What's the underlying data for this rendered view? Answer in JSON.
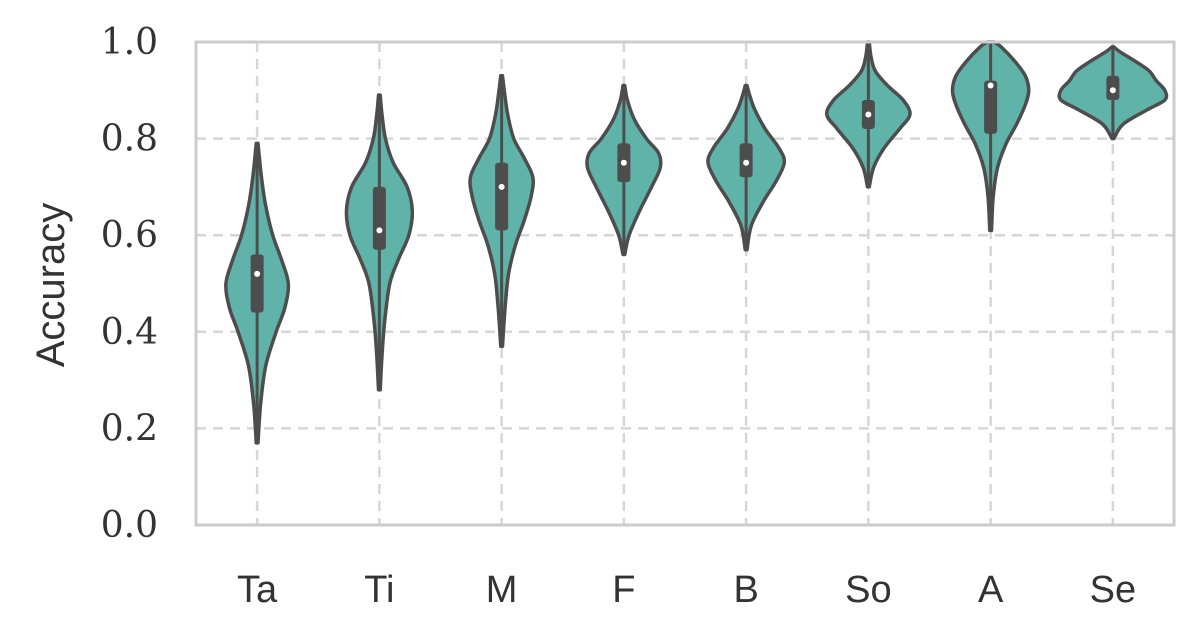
{
  "chart_data": {
    "type": "violin",
    "title": "",
    "xlabel": "",
    "ylabel": "Accuracy",
    "ylim": [
      0,
      1
    ],
    "yticks": [
      "0.0",
      "0.2",
      "0.4",
      "0.6",
      "0.8",
      "1.0"
    ],
    "grid": true,
    "colors": {
      "fill": "#5fb3a8",
      "stroke": "#4d4d4d",
      "grid": "#d6d6d6",
      "frame": "#cccccc"
    },
    "categories": [
      "Ta",
      "Ti",
      "M",
      "F",
      "B",
      "So",
      "A",
      "Se"
    ],
    "violins": [
      {
        "label": "Ta",
        "min": 0.17,
        "q1": 0.44,
        "median": 0.52,
        "q3": 0.56,
        "max": 0.79,
        "density": [
          [
            0.17,
            0.005
          ],
          [
            0.25,
            0.02
          ],
          [
            0.33,
            0.05
          ],
          [
            0.4,
            0.11
          ],
          [
            0.45,
            0.16
          ],
          [
            0.5,
            0.18
          ],
          [
            0.55,
            0.14
          ],
          [
            0.6,
            0.09
          ],
          [
            0.66,
            0.05
          ],
          [
            0.72,
            0.025
          ],
          [
            0.79,
            0.005
          ]
        ]
      },
      {
        "label": "Ti",
        "min": 0.28,
        "q1": 0.57,
        "median": 0.61,
        "q3": 0.7,
        "max": 0.89,
        "density": [
          [
            0.28,
            0.005
          ],
          [
            0.35,
            0.015
          ],
          [
            0.42,
            0.03
          ],
          [
            0.5,
            0.06
          ],
          [
            0.55,
            0.11
          ],
          [
            0.6,
            0.17
          ],
          [
            0.65,
            0.19
          ],
          [
            0.7,
            0.16
          ],
          [
            0.75,
            0.08
          ],
          [
            0.8,
            0.035
          ],
          [
            0.85,
            0.015
          ],
          [
            0.89,
            0.005
          ]
        ]
      },
      {
        "label": "M",
        "min": 0.37,
        "q1": 0.61,
        "median": 0.7,
        "q3": 0.75,
        "max": 0.93,
        "density": [
          [
            0.37,
            0.005
          ],
          [
            0.45,
            0.02
          ],
          [
            0.52,
            0.04
          ],
          [
            0.58,
            0.08
          ],
          [
            0.63,
            0.13
          ],
          [
            0.68,
            0.17
          ],
          [
            0.72,
            0.18
          ],
          [
            0.76,
            0.13
          ],
          [
            0.8,
            0.07
          ],
          [
            0.85,
            0.035
          ],
          [
            0.9,
            0.015
          ],
          [
            0.93,
            0.005
          ]
        ]
      },
      {
        "label": "F",
        "min": 0.56,
        "q1": 0.71,
        "median": 0.75,
        "q3": 0.79,
        "max": 0.91,
        "density": [
          [
            0.56,
            0.005
          ],
          [
            0.6,
            0.03
          ],
          [
            0.65,
            0.09
          ],
          [
            0.7,
            0.16
          ],
          [
            0.74,
            0.21
          ],
          [
            0.77,
            0.2
          ],
          [
            0.8,
            0.13
          ],
          [
            0.84,
            0.06
          ],
          [
            0.88,
            0.02
          ],
          [
            0.91,
            0.005
          ]
        ]
      },
      {
        "label": "B",
        "min": 0.57,
        "q1": 0.72,
        "median": 0.75,
        "q3": 0.79,
        "max": 0.91,
        "density": [
          [
            0.57,
            0.005
          ],
          [
            0.62,
            0.03
          ],
          [
            0.67,
            0.1
          ],
          [
            0.71,
            0.17
          ],
          [
            0.75,
            0.22
          ],
          [
            0.78,
            0.19
          ],
          [
            0.82,
            0.11
          ],
          [
            0.86,
            0.05
          ],
          [
            0.89,
            0.02
          ],
          [
            0.91,
            0.005
          ]
        ]
      },
      {
        "label": "So",
        "min": 0.7,
        "q1": 0.82,
        "median": 0.85,
        "q3": 0.88,
        "max": 1.0,
        "density": [
          [
            0.7,
            0.005
          ],
          [
            0.74,
            0.03
          ],
          [
            0.78,
            0.09
          ],
          [
            0.82,
            0.18
          ],
          [
            0.85,
            0.24
          ],
          [
            0.88,
            0.2
          ],
          [
            0.91,
            0.11
          ],
          [
            0.94,
            0.04
          ],
          [
            0.97,
            0.015
          ],
          [
            1.0,
            0.005
          ]
        ]
      },
      {
        "label": "A",
        "min": 0.61,
        "q1": 0.81,
        "median": 0.91,
        "q3": 0.92,
        "max": 1.0,
        "density": [
          [
            0.61,
            0.005
          ],
          [
            0.68,
            0.015
          ],
          [
            0.74,
            0.04
          ],
          [
            0.79,
            0.09
          ],
          [
            0.83,
            0.15
          ],
          [
            0.87,
            0.2
          ],
          [
            0.9,
            0.22
          ],
          [
            0.93,
            0.2
          ],
          [
            0.96,
            0.14
          ],
          [
            0.99,
            0.06
          ],
          [
            1.0,
            0.02
          ]
        ]
      },
      {
        "label": "Se",
        "min": 0.8,
        "q1": 0.88,
        "median": 0.9,
        "q3": 0.93,
        "max": 0.99,
        "density": [
          [
            0.8,
            0.005
          ],
          [
            0.83,
            0.06
          ],
          [
            0.86,
            0.2
          ],
          [
            0.88,
            0.3
          ],
          [
            0.9,
            0.3
          ],
          [
            0.92,
            0.25
          ],
          [
            0.94,
            0.21
          ],
          [
            0.96,
            0.13
          ],
          [
            0.98,
            0.04
          ],
          [
            0.99,
            0.005
          ]
        ]
      }
    ]
  }
}
